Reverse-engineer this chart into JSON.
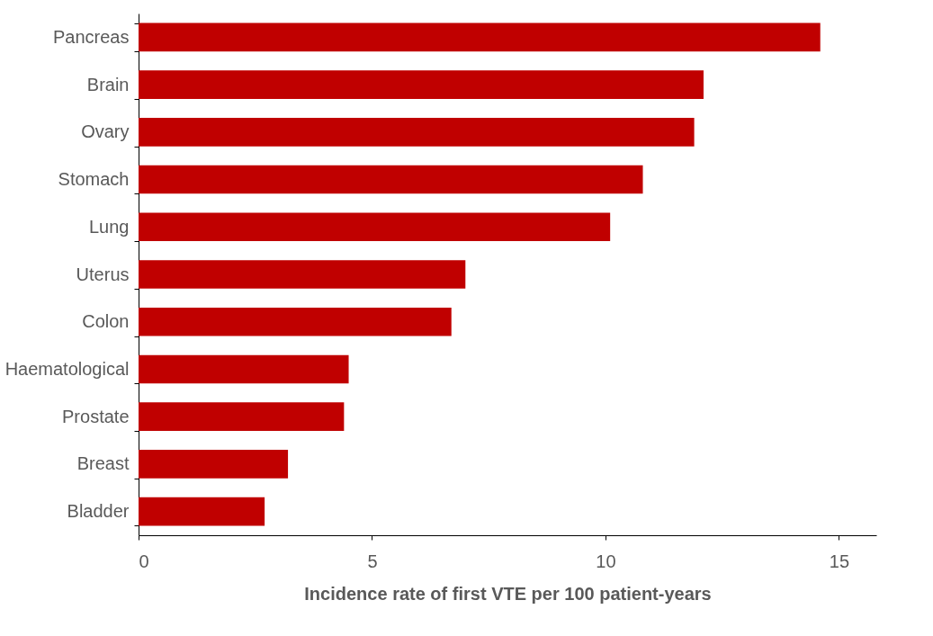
{
  "chart_data": {
    "type": "bar",
    "orientation": "horizontal",
    "xlabel": "Incidence rate of first VTE per 100 patient-years",
    "categories": [
      "Pancreas",
      "Brain",
      "Ovary",
      "Stomach",
      "Lung",
      "Uterus",
      "Colon",
      "Haematological",
      "Prostate",
      "Breast",
      "Bladder"
    ],
    "values": [
      14.6,
      12.1,
      11.9,
      10.8,
      10.1,
      7.0,
      6.7,
      4.5,
      4.4,
      3.2,
      2.7
    ],
    "color": "#c00000",
    "xlim": [
      0,
      15.8
    ],
    "xticks": [
      0,
      5,
      10,
      15
    ],
    "grid": false
  }
}
